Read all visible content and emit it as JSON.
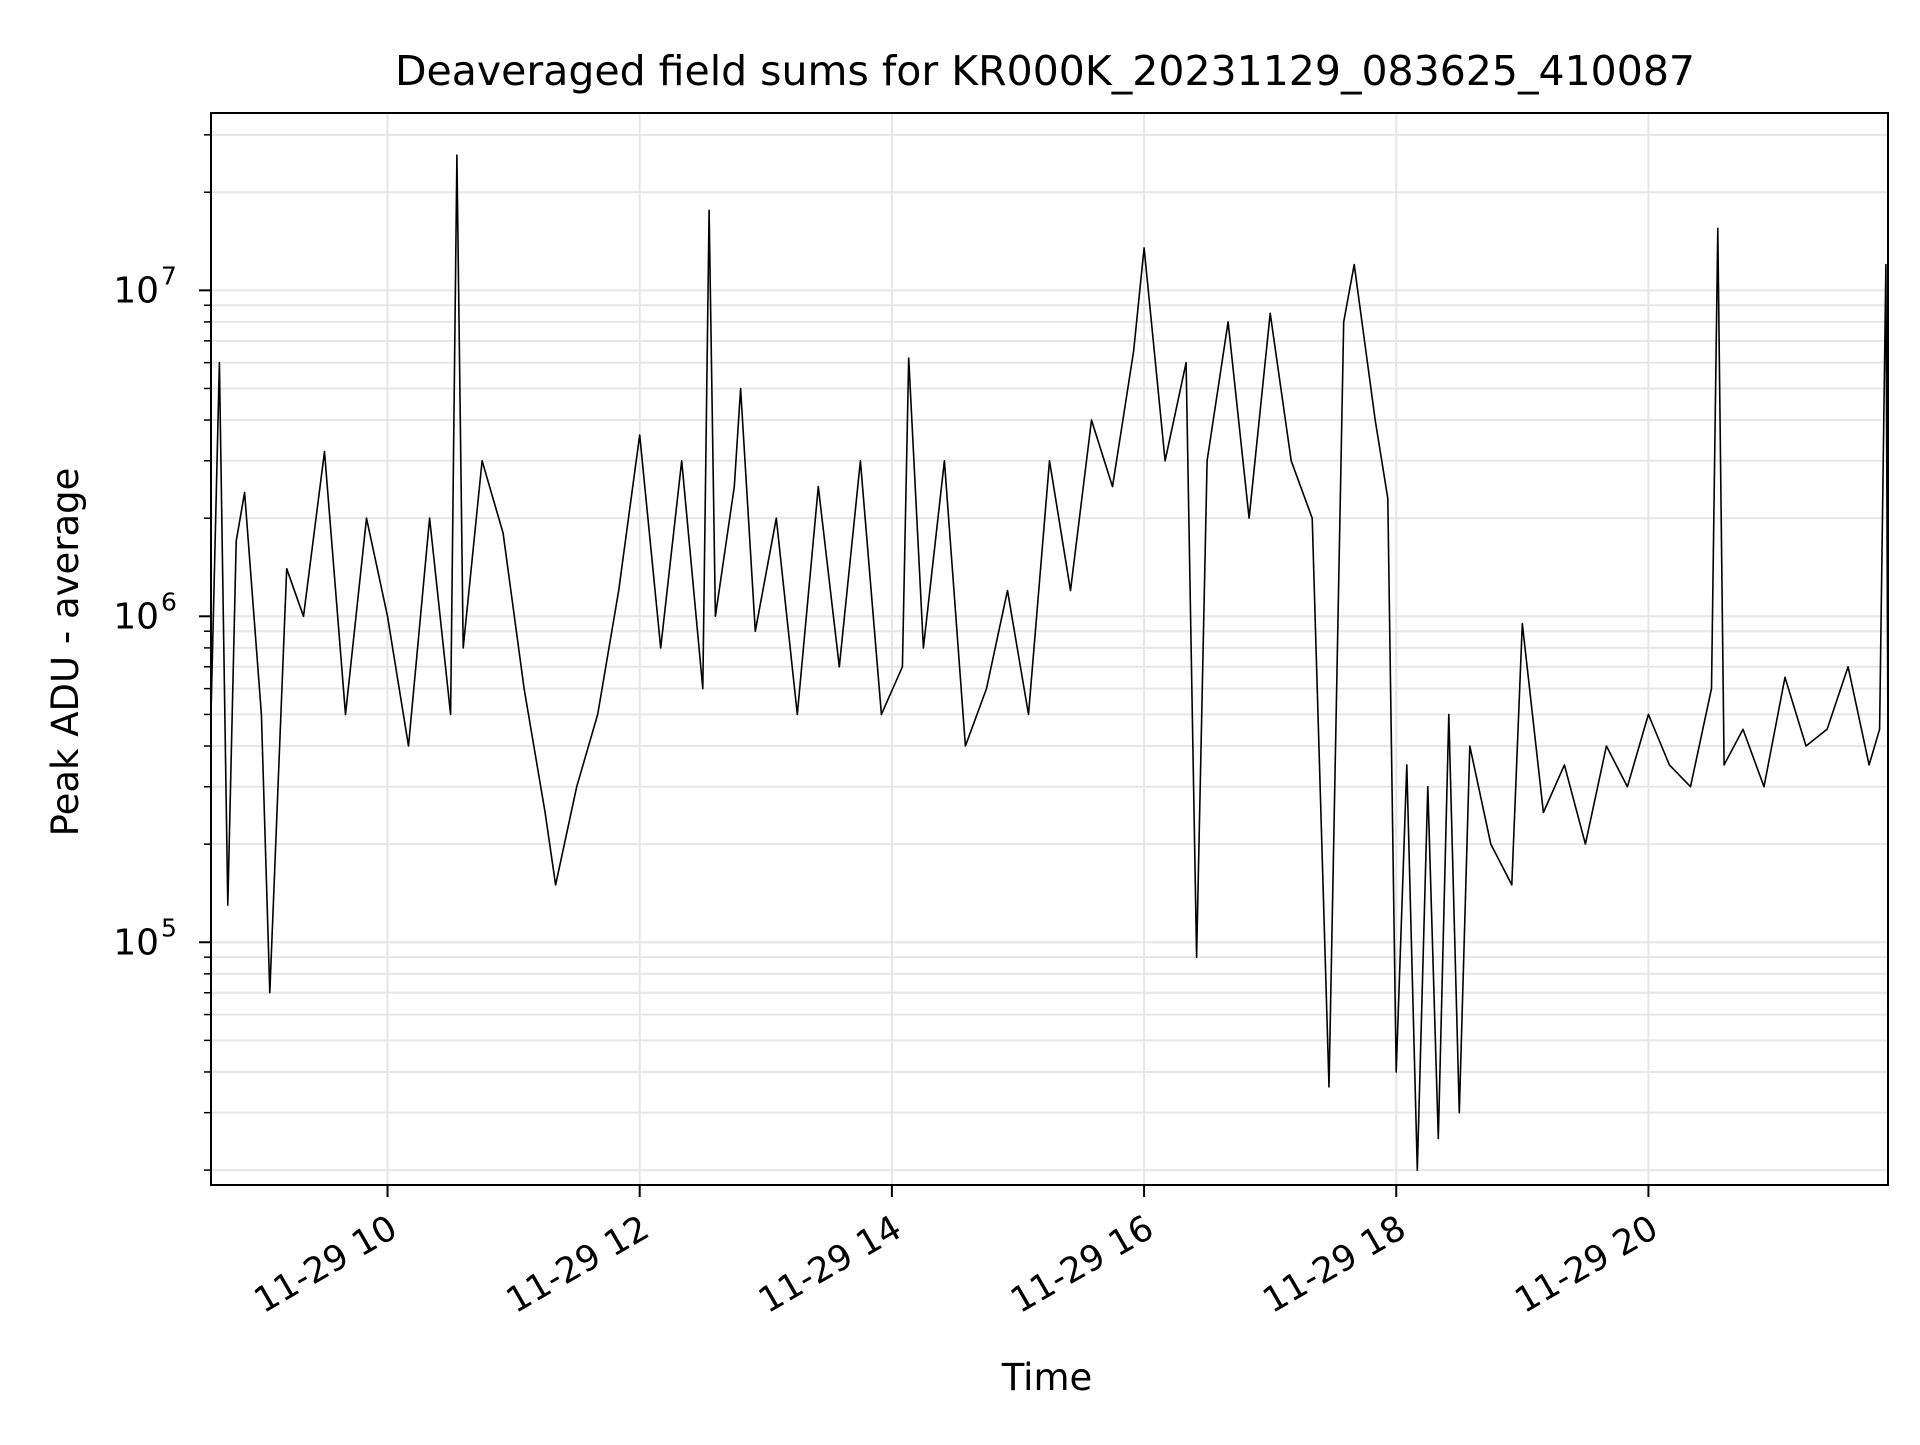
{
  "chart_data": {
    "type": "line",
    "title": "Deaveraged field sums for KR000K_20231129_083625_410087",
    "xlabel": "Time",
    "ylabel": "Peak ADU - average",
    "yscale": "log",
    "grid": true,
    "legend": "none",
    "xlim": [
      "2023-11-29T08:36",
      "2023-11-29T21:54"
    ],
    "ylim": [
      18000,
      35000000
    ],
    "xticks": [
      {
        "t": "2023-11-29T10:00",
        "label": "11-29 10"
      },
      {
        "t": "2023-11-29T12:00",
        "label": "11-29 12"
      },
      {
        "t": "2023-11-29T14:00",
        "label": "11-29 14"
      },
      {
        "t": "2023-11-29T16:00",
        "label": "11-29 16"
      },
      {
        "t": "2023-11-29T18:00",
        "label": "11-29 18"
      },
      {
        "t": "2023-11-29T20:00",
        "label": "11-29 20"
      }
    ],
    "yticks": [
      {
        "value": 100000,
        "base": "10",
        "exp": "5"
      },
      {
        "value": 1000000,
        "base": "10",
        "exp": "6"
      },
      {
        "value": 10000000,
        "base": "10",
        "exp": "7"
      }
    ],
    "series": [
      {
        "color": "#000000",
        "x": [
          "2023-11-29T08:36",
          "2023-11-29T08:40",
          "2023-11-29T08:44",
          "2023-11-29T08:48",
          "2023-11-29T08:52",
          "2023-11-29T09:00",
          "2023-11-29T09:04",
          "2023-11-29T09:12",
          "2023-11-29T09:20",
          "2023-11-29T09:30",
          "2023-11-29T09:40",
          "2023-11-29T09:50",
          "2023-11-29T10:00",
          "2023-11-29T10:10",
          "2023-11-29T10:20",
          "2023-11-29T10:30",
          "2023-11-29T10:33",
          "2023-11-29T10:36",
          "2023-11-29T10:45",
          "2023-11-29T10:55",
          "2023-11-29T11:05",
          "2023-11-29T11:15",
          "2023-11-29T11:20",
          "2023-11-29T11:30",
          "2023-11-29T11:40",
          "2023-11-29T11:50",
          "2023-11-29T12:00",
          "2023-11-29T12:10",
          "2023-11-29T12:20",
          "2023-11-29T12:30",
          "2023-11-29T12:33",
          "2023-11-29T12:36",
          "2023-11-29T12:45",
          "2023-11-29T12:48",
          "2023-11-29T12:55",
          "2023-11-29T13:05",
          "2023-11-29T13:15",
          "2023-11-29T13:25",
          "2023-11-29T13:35",
          "2023-11-29T13:45",
          "2023-11-29T13:55",
          "2023-11-29T14:05",
          "2023-11-29T14:08",
          "2023-11-29T14:15",
          "2023-11-29T14:25",
          "2023-11-29T14:35",
          "2023-11-29T14:45",
          "2023-11-29T14:55",
          "2023-11-29T15:05",
          "2023-11-29T15:15",
          "2023-11-29T15:25",
          "2023-11-29T15:35",
          "2023-11-29T15:45",
          "2023-11-29T15:55",
          "2023-11-29T16:00",
          "2023-11-29T16:10",
          "2023-11-29T16:20",
          "2023-11-29T16:25",
          "2023-11-29T16:30",
          "2023-11-29T16:40",
          "2023-11-29T16:50",
          "2023-11-29T17:00",
          "2023-11-29T17:10",
          "2023-11-29T17:20",
          "2023-11-29T17:28",
          "2023-11-29T17:35",
          "2023-11-29T17:40",
          "2023-11-29T17:50",
          "2023-11-29T17:56",
          "2023-11-29T18:00",
          "2023-11-29T18:05",
          "2023-11-29T18:10",
          "2023-11-29T18:15",
          "2023-11-29T18:20",
          "2023-11-29T18:25",
          "2023-11-29T18:30",
          "2023-11-29T18:35",
          "2023-11-29T18:45",
          "2023-11-29T18:55",
          "2023-11-29T19:00",
          "2023-11-29T19:10",
          "2023-11-29T19:20",
          "2023-11-29T19:30",
          "2023-11-29T19:40",
          "2023-11-29T19:50",
          "2023-11-29T20:00",
          "2023-11-29T20:10",
          "2023-11-29T20:20",
          "2023-11-29T20:30",
          "2023-11-29T20:33",
          "2023-11-29T20:36",
          "2023-11-29T20:45",
          "2023-11-29T20:55",
          "2023-11-29T21:05",
          "2023-11-29T21:15",
          "2023-11-29T21:25",
          "2023-11-29T21:35",
          "2023-11-29T21:45",
          "2023-11-29T21:50",
          "2023-11-29T21:53",
          "2023-11-29T21:54"
        ],
        "y": [
          500000,
          6000000,
          130000,
          1700000,
          2400000,
          500000,
          70000,
          1400000,
          1000000,
          3200000,
          500000,
          2000000,
          1000000,
          400000,
          2000000,
          500000,
          26000000,
          800000,
          3000000,
          1800000,
          600000,
          250000,
          150000,
          300000,
          500000,
          1200000,
          3600000,
          800000,
          3000000,
          600000,
          17600000,
          1000000,
          2500000,
          5000000,
          900000,
          2000000,
          500000,
          2500000,
          700000,
          3000000,
          500000,
          700000,
          6200000,
          800000,
          3000000,
          400000,
          600000,
          1200000,
          500000,
          3000000,
          1200000,
          4000000,
          2500000,
          6500000,
          13500000,
          3000000,
          6000000,
          90000,
          3000000,
          8000000,
          2000000,
          8500000,
          3000000,
          2000000,
          36000,
          8000000,
          12000000,
          4000000,
          2300000,
          40000,
          350000,
          20000,
          300000,
          25000,
          500000,
          30000,
          400000,
          200000,
          150000,
          950000,
          250000,
          350000,
          200000,
          400000,
          300000,
          500000,
          350000,
          300000,
          600000,
          15500000,
          350000,
          450000,
          300000,
          650000,
          400000,
          450000,
          700000,
          350000,
          450000,
          12000000,
          400000
        ]
      }
    ]
  }
}
